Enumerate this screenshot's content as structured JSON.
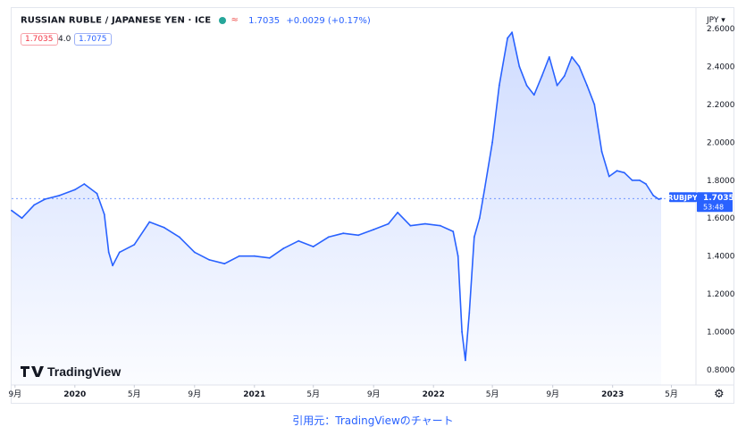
{
  "header": {
    "symbol": "RUSSIAN RUBLE / JAPANESE YEN · ICE",
    "price": "1.7035",
    "change": "+0.0029 (+0.17%)",
    "bid": "1.7035",
    "spread": "4.0",
    "ask": "1.7075",
    "currency_menu": "JPY ▾",
    "status_color": "#26a69a",
    "wave_icon": "≈"
  },
  "logo": {
    "text": "TradingView"
  },
  "price_label": {
    "ticker": "RUBJPY",
    "price": "1.7035",
    "countdown": "53:48"
  },
  "settings_icon": "gear-icon",
  "caption": "引用元：TradingViewのチャート",
  "colors": {
    "line": "#2962ff",
    "fill": "#2962ff",
    "axis_text": "#131722",
    "grid": "#f0f3fa"
  },
  "chart_data": {
    "type": "area",
    "title": "RUSSIAN RUBLE / JAPANESE YEN · ICE",
    "xlabel": "",
    "ylabel": "",
    "ylim": [
      0.72,
      2.68
    ],
    "grid": false,
    "y_ticks": [
      "0.8000",
      "1.0000",
      "1.2000",
      "1.4000",
      "1.6000",
      "1.8000",
      "2.0000",
      "2.2000",
      "2.4000",
      "2.6000"
    ],
    "x_ticks": [
      {
        "label": "9月",
        "x": "2019-09"
      },
      {
        "label": "2020",
        "x": "2020-01"
      },
      {
        "label": "5月",
        "x": "2020-05"
      },
      {
        "label": "9月",
        "x": "2020-09"
      },
      {
        "label": "2021",
        "x": "2021-01"
      },
      {
        "label": "5月",
        "x": "2021-05"
      },
      {
        "label": "9月",
        "x": "2021-09"
      },
      {
        "label": "2022",
        "x": "2022-01"
      },
      {
        "label": "5月",
        "x": "2022-05"
      },
      {
        "label": "9月",
        "x": "2022-09"
      },
      {
        "label": "2023",
        "x": "2023-01"
      },
      {
        "label": "5月",
        "x": "2023-05"
      }
    ],
    "x_range": [
      "2019-08-25",
      "2023-06-20"
    ],
    "x": [
      "2019-08-25",
      "2019-09-15",
      "2019-10-10",
      "2019-11-01",
      "2019-12-01",
      "2020-01-01",
      "2020-01-20",
      "2020-02-15",
      "2020-03-01",
      "2020-03-10",
      "2020-03-18",
      "2020-04-01",
      "2020-05-01",
      "2020-06-01",
      "2020-07-01",
      "2020-08-01",
      "2020-09-01",
      "2020-10-01",
      "2020-11-01",
      "2020-12-01",
      "2021-01-01",
      "2021-02-01",
      "2021-03-01",
      "2021-04-01",
      "2021-05-01",
      "2021-06-01",
      "2021-07-01",
      "2021-08-01",
      "2021-09-01",
      "2021-10-01",
      "2021-10-20",
      "2021-11-15",
      "2021-12-15",
      "2022-01-15",
      "2022-02-10",
      "2022-02-20",
      "2022-02-28",
      "2022-03-07",
      "2022-03-15",
      "2022-03-25",
      "2022-04-05",
      "2022-04-15",
      "2022-05-01",
      "2022-05-15",
      "2022-06-01",
      "2022-06-10",
      "2022-06-25",
      "2022-07-10",
      "2022-07-25",
      "2022-08-10",
      "2022-08-25",
      "2022-09-10",
      "2022-09-25",
      "2022-10-10",
      "2022-10-25",
      "2022-11-10",
      "2022-11-25",
      "2022-12-10",
      "2022-12-25",
      "2023-01-10",
      "2023-01-25",
      "2023-02-10",
      "2023-02-25",
      "2023-03-10",
      "2023-03-25",
      "2023-04-05",
      "2023-04-10"
    ],
    "series": [
      {
        "values": [
          1.64,
          1.6,
          1.67,
          1.7,
          1.72,
          1.75,
          1.78,
          1.73,
          1.62,
          1.42,
          1.35,
          1.42,
          1.46,
          1.58,
          1.55,
          1.5,
          1.42,
          1.38,
          1.36,
          1.4,
          1.4,
          1.39,
          1.44,
          1.48,
          1.45,
          1.5,
          1.52,
          1.51,
          1.54,
          1.57,
          1.63,
          1.56,
          1.57,
          1.56,
          1.53,
          1.4,
          1.0,
          0.85,
          1.1,
          1.5,
          1.6,
          1.75,
          2.0,
          2.3,
          2.55,
          2.58,
          2.4,
          2.3,
          2.25,
          2.35,
          2.45,
          2.3,
          2.35,
          2.45,
          2.4,
          2.3,
          2.2,
          1.95,
          1.82,
          1.85,
          1.84,
          1.8,
          1.8,
          1.78,
          1.72,
          1.7,
          1.7035
        ]
      }
    ]
  }
}
